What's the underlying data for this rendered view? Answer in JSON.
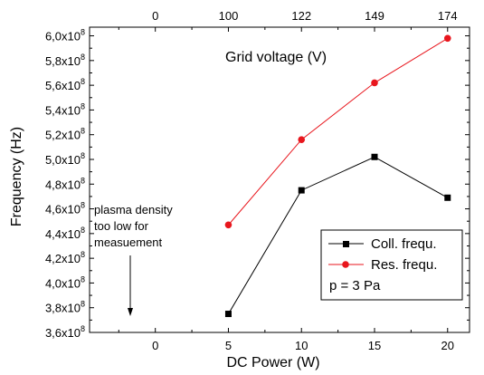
{
  "chart_data": {
    "type": "line",
    "xlabel": "DC Power (W)",
    "ylabel": "Frequency (Hz)",
    "top_axis_title": "Grid voltage (V)",
    "xlim": [
      -4.5,
      21.5
    ],
    "ylim": [
      360000000.0,
      607000000.0
    ],
    "x_ticks": [
      0,
      5,
      10,
      15,
      20
    ],
    "x_tick_labels": [
      "0",
      "5",
      "10",
      "15",
      "20"
    ],
    "top_ticks": [
      0,
      5,
      10,
      15,
      20
    ],
    "top_tick_labels": [
      "0",
      "100",
      "122",
      "149",
      "174"
    ],
    "y_ticks": [
      360000000.0,
      380000000.0,
      400000000.0,
      420000000.0,
      440000000.0,
      460000000.0,
      480000000.0,
      500000000.0,
      520000000.0,
      540000000.0,
      560000000.0,
      580000000.0,
      600000000.0
    ],
    "y_tick_mantissas": [
      "3,6x10",
      "3,8x10",
      "4,0x10",
      "4,2x10",
      "4,4x10",
      "4,6x10",
      "4,8x10",
      "5,0x10",
      "5,2x10",
      "5,4x10",
      "5,6x10",
      "5,8x10",
      "6,0x10"
    ],
    "y_tick_exponent": "8",
    "series": [
      {
        "name": "Coll. frequ.",
        "color": "#000000",
        "marker": "square",
        "x": [
          5,
          10,
          15,
          20
        ],
        "values": [
          375000000.0,
          475000000.0,
          502000000.0,
          469000000.0
        ]
      },
      {
        "name": "Res. frequ.",
        "color": "#e8161d",
        "marker": "circle",
        "x": [
          5,
          10,
          15,
          20
        ],
        "values": [
          447000000.0,
          516000000.0,
          562000000.0,
          598000000.0
        ]
      }
    ],
    "legend_note": "p = 3 Pa",
    "legend_position": "bottom-right",
    "annotation": {
      "lines": [
        "plasma density",
        "too low for",
        "measuement"
      ],
      "arrow_to_x": 0
    },
    "grid": false
  }
}
